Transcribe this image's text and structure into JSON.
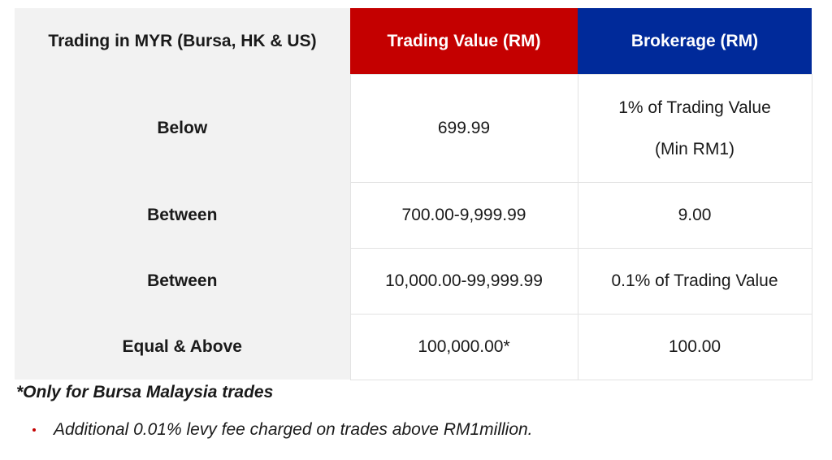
{
  "table": {
    "headers": {
      "label": "Trading in MYR (Bursa, HK & US)",
      "value": "Trading Value (RM)",
      "brokerage": "Brokerage (RM)"
    },
    "rows": [
      {
        "label": "Below",
        "value": "699.99",
        "brokerage_line1": "1% of Trading Value",
        "brokerage_line2": "(Min RM1)"
      },
      {
        "label": "Between",
        "value": "700.00-9,999.99",
        "brokerage": "9.00"
      },
      {
        "label": "Between",
        "value": "10,000.00-99,999.99",
        "brokerage": "0.1% of Trading Value"
      },
      {
        "label": "Equal & Above",
        "value": "100,000.00*",
        "brokerage": "100.00"
      }
    ]
  },
  "note": "*Only for Bursa Malaysia trades",
  "bullets": [
    "Additional 0.01% levy fee charged on trades above RM1million."
  ],
  "colors": {
    "value_header": "#c40000",
    "brokerage_header": "#002a9a",
    "label_column": "#f2f2f2"
  }
}
